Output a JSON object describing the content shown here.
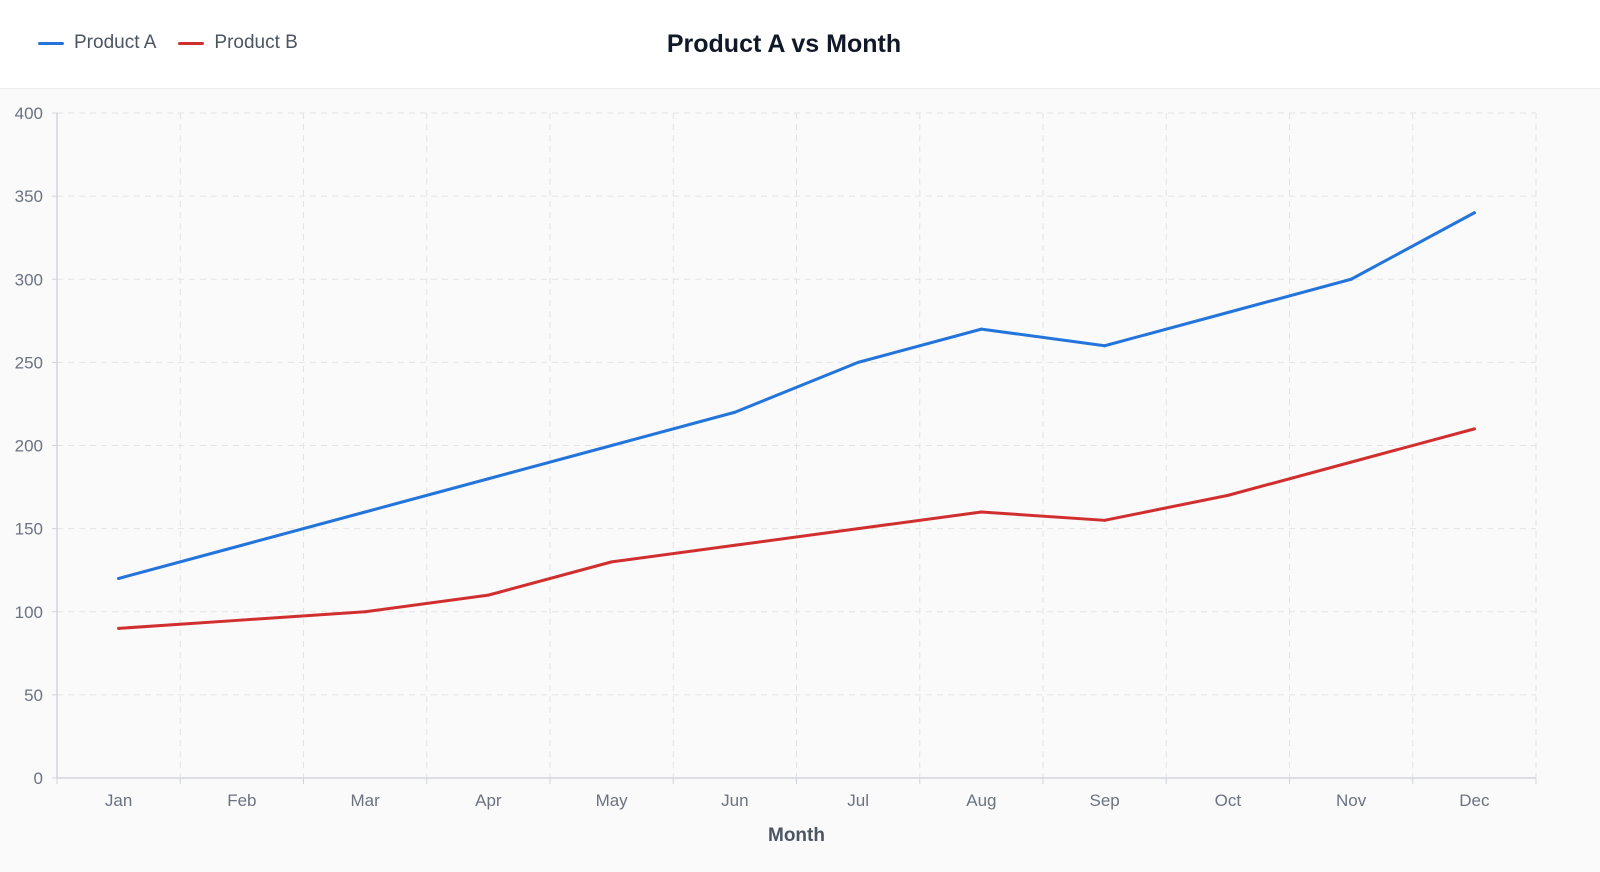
{
  "chart_data": {
    "type": "line",
    "title": "Product A vs Month",
    "xlabel": "Month",
    "ylabel": "",
    "categories": [
      "Jan",
      "Feb",
      "Mar",
      "Apr",
      "May",
      "Jun",
      "Jul",
      "Aug",
      "Sep",
      "Oct",
      "Nov",
      "Dec"
    ],
    "series": [
      {
        "name": "Product A",
        "color": "#2374db",
        "values": [
          120,
          140,
          160,
          180,
          200,
          220,
          250,
          270,
          260,
          280,
          300,
          340
        ]
      },
      {
        "name": "Product B",
        "color": "#d12f2f",
        "values": [
          90,
          95,
          100,
          110,
          130,
          140,
          150,
          160,
          155,
          170,
          190,
          210
        ]
      }
    ],
    "ylim": [
      0,
      400
    ],
    "yticks": [
      0,
      50,
      100,
      150,
      200,
      250,
      300,
      350,
      400
    ],
    "grid": true,
    "legend": "top-left"
  }
}
